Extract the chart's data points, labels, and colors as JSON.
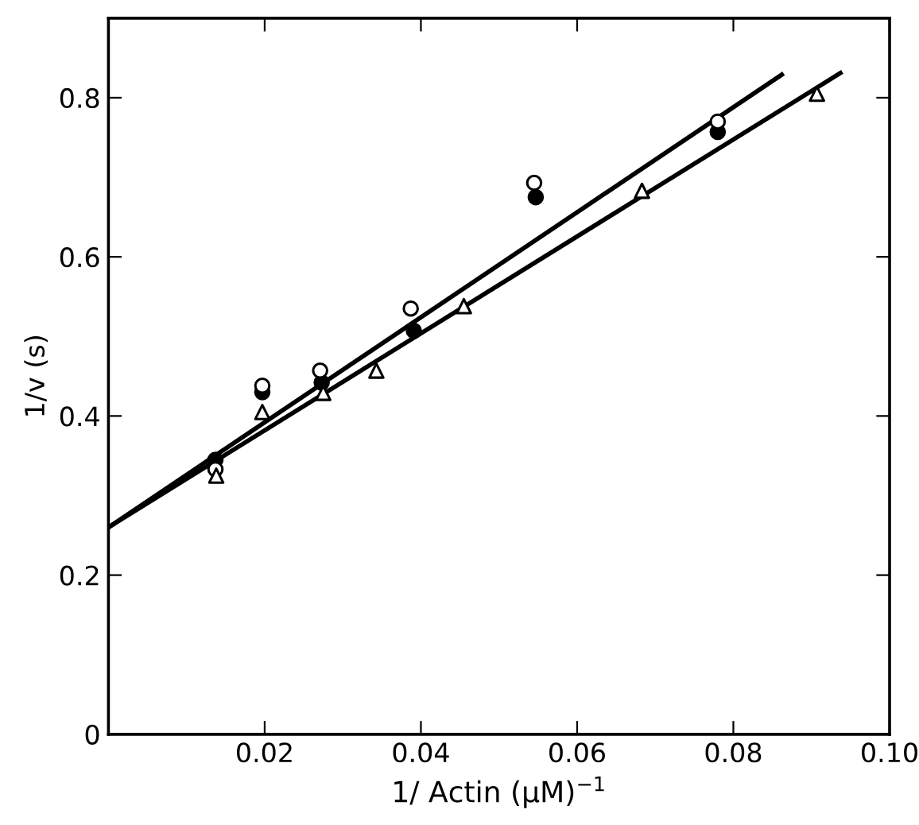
{
  "chart_data": {
    "type": "scatter",
    "xlabel": "1/ Actin (μM)$^{−1}$",
    "ylabel": "1/v (s)",
    "xlim": [
      0,
      0.1
    ],
    "ylim": [
      0,
      0.9
    ],
    "xticks": [
      0.02,
      0.04,
      0.06,
      0.08,
      {
        "value": 0.1,
        "label": "0.10"
      }
    ],
    "yticks": [
      0,
      0.2,
      0.4,
      0.6,
      0.8
    ],
    "grid": false,
    "legend": false,
    "series": [
      {
        "marker": "circle",
        "color": "#000000",
        "x": [
          0.0137,
          0.0197,
          0.0273,
          0.0391,
          0.0547,
          0.078
        ],
        "values": [
          0.345,
          0.43,
          0.442,
          0.507,
          0.675,
          0.757
        ]
      },
      {
        "marker": "circle",
        "color": "#ffffff",
        "x": [
          0.0137,
          0.0197,
          0.0271,
          0.0387,
          0.0545,
          0.078
        ],
        "values": [
          0.333,
          0.438,
          0.457,
          0.535,
          0.693,
          0.77
        ]
      },
      {
        "marker": "triangle",
        "color": "#ffffff",
        "x": [
          0.0138,
          0.0197,
          0.0275,
          0.0343,
          0.0455,
          0.0683,
          0.0907
        ],
        "values": [
          0.325,
          0.405,
          0.429,
          0.457,
          0.538,
          0.683,
          0.805
        ]
      },
      {
        "type": "line",
        "marker": "none",
        "line_style": "solid",
        "color": "#000000",
        "x": [
          0,
          0.0862
        ],
        "values": [
          0.26,
          0.829
        ]
      },
      {
        "type": "line",
        "marker": "none",
        "line_style": "solid",
        "color": "#000000",
        "x": [
          0,
          0.0937
        ],
        "values": [
          0.26,
          0.831
        ]
      }
    ]
  }
}
